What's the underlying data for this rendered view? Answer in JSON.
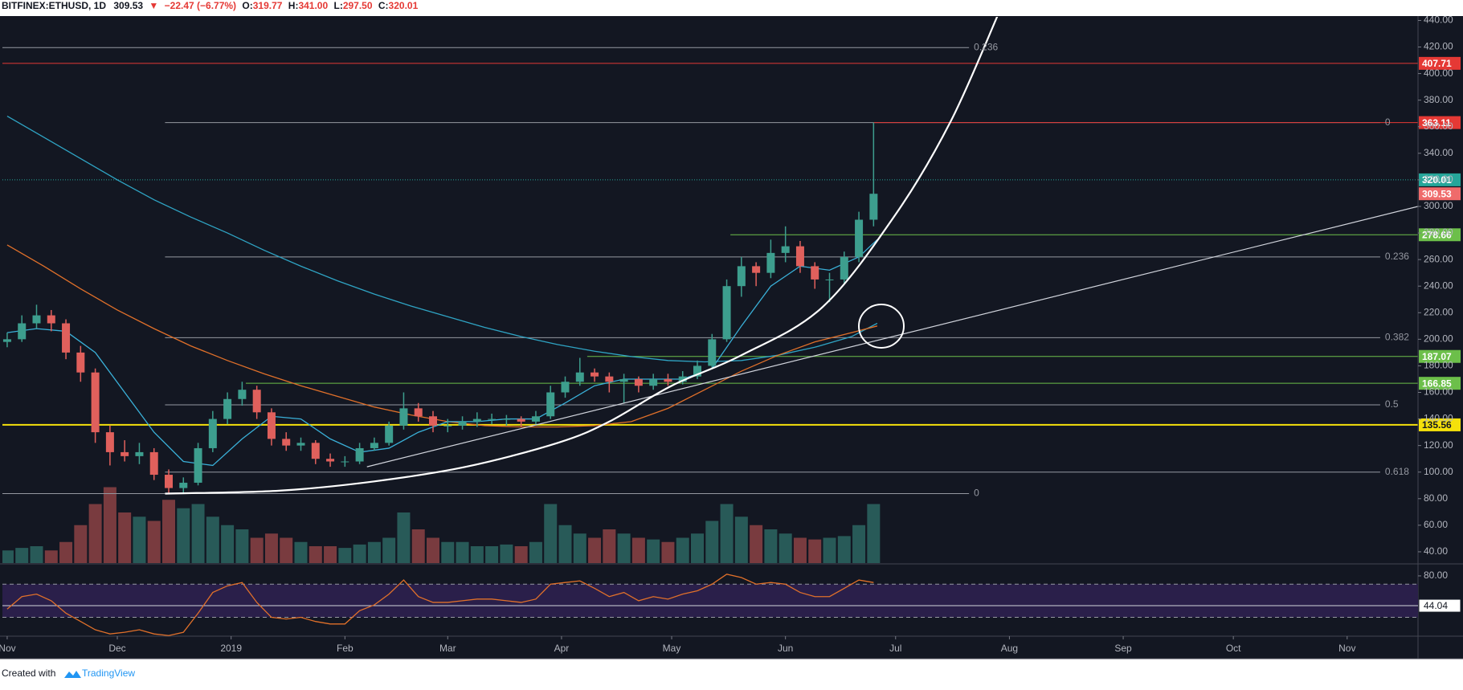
{
  "header": {
    "symbol": "BITFINEX:ETHUSD, 1D",
    "last": "309.53",
    "arrow": "▼",
    "change": "−22.47 (−6.77%)",
    "ohlc": [
      {
        "label": "O:",
        "value": "319.77"
      },
      {
        "label": "H:",
        "value": "341.00"
      },
      {
        "label": "L:",
        "value": "297.50"
      },
      {
        "label": "C:",
        "value": "320.01"
      }
    ]
  },
  "footer": {
    "created": "Created with",
    "brand": "TradingView"
  },
  "chart_data": {
    "type": "candlestick",
    "up_color": "#3d9e8e",
    "down_color": "#e0605c",
    "xlim": [
      -1.3,
      384.3
    ],
    "xticks": [
      {
        "value": 0,
        "label": "Nov"
      },
      {
        "value": 30,
        "label": "Dec"
      },
      {
        "value": 61,
        "label": "2019"
      },
      {
        "value": 92,
        "label": "Feb"
      },
      {
        "value": 120,
        "label": "Mar"
      },
      {
        "value": 151,
        "label": "Apr"
      },
      {
        "value": 181,
        "label": "May"
      },
      {
        "value": 212,
        "label": "Jun"
      },
      {
        "value": 242,
        "label": "Jul"
      },
      {
        "value": 273,
        "label": "Aug"
      },
      {
        "value": 304,
        "label": "Sep"
      },
      {
        "value": 334,
        "label": "Oct"
      },
      {
        "value": 365,
        "label": "Nov"
      }
    ],
    "ylim": [
      31.5,
      442.7
    ],
    "yticks": [
      {
        "value": 40,
        "label": "40.00"
      },
      {
        "value": 60,
        "label": "60.00"
      },
      {
        "value": 80,
        "label": "80.00"
      },
      {
        "value": 100,
        "label": "100.00"
      },
      {
        "value": 120,
        "label": "120.00"
      },
      {
        "value": 140,
        "label": "140.00"
      },
      {
        "value": 160,
        "label": "160.00"
      },
      {
        "value": 180,
        "label": "180.00"
      },
      {
        "value": 200,
        "label": "200.00"
      },
      {
        "value": 220,
        "label": "220.00"
      },
      {
        "value": 240,
        "label": "240.00"
      },
      {
        "value": 260,
        "label": "260.00"
      },
      {
        "value": 280,
        "label": "280.00"
      },
      {
        "value": 300,
        "label": "300.00"
      },
      {
        "value": 320,
        "label": "320.00"
      },
      {
        "value": 340,
        "label": "340.00"
      },
      {
        "value": 360,
        "label": "360.00"
      },
      {
        "value": 380,
        "label": "380.00"
      },
      {
        "value": 400,
        "label": "400.00"
      },
      {
        "value": 420,
        "label": "420.00"
      },
      {
        "value": 440,
        "label": "440.00"
      }
    ],
    "x": [
      0,
      4,
      8,
      12,
      16,
      20,
      24,
      28,
      32,
      36,
      40,
      44,
      48,
      52,
      56,
      60,
      64,
      68,
      72,
      76,
      80,
      84,
      88,
      92,
      96,
      100,
      104,
      108,
      112,
      116,
      120,
      124,
      128,
      132,
      136,
      140,
      144,
      148,
      152,
      156,
      160,
      164,
      168,
      172,
      176,
      180,
      184,
      188,
      192,
      196,
      200,
      204,
      208,
      212,
      216,
      220,
      224,
      228,
      232,
      236
    ],
    "open": [
      198,
      200,
      212,
      218,
      212,
      190,
      175,
      130,
      115,
      112,
      115,
      98,
      88,
      92,
      118,
      140,
      155,
      162,
      145,
      125,
      120,
      122,
      110,
      108,
      108,
      118,
      122,
      135,
      148,
      142,
      135,
      135,
      138,
      140,
      140,
      140,
      138,
      142,
      160,
      168,
      175,
      172,
      168,
      170,
      165,
      170,
      168,
      172,
      180,
      200,
      240,
      255,
      250,
      265,
      270,
      255,
      245,
      245,
      262,
      290
    ],
    "high": [
      205,
      218,
      226,
      222,
      215,
      195,
      178,
      135,
      124,
      122,
      118,
      102,
      96,
      122,
      146,
      160,
      168,
      165,
      148,
      130,
      126,
      124,
      114,
      112,
      122,
      126,
      138,
      160,
      152,
      146,
      140,
      142,
      145,
      144,
      143,
      142,
      146,
      165,
      172,
      186,
      178,
      175,
      174,
      172,
      174,
      174,
      176,
      184,
      204,
      245,
      262,
      258,
      275,
      285,
      274,
      258,
      250,
      266,
      296,
      363.11
    ],
    "low": [
      194,
      198,
      208,
      206,
      185,
      168,
      122,
      105,
      108,
      106,
      94,
      84,
      84,
      90,
      115,
      136,
      150,
      140,
      120,
      116,
      116,
      106,
      104,
      104,
      106,
      116,
      120,
      132,
      138,
      130,
      130,
      132,
      134,
      136,
      135,
      134,
      136,
      140,
      156,
      165,
      168,
      160,
      152,
      160,
      162,
      165,
      166,
      170,
      178,
      198,
      232,
      240,
      246,
      258,
      250,
      238,
      228,
      242,
      258,
      285
    ],
    "close": [
      200,
      212,
      218,
      212,
      190,
      175,
      130,
      115,
      112,
      115,
      98,
      88,
      92,
      118,
      140,
      155,
      162,
      145,
      125,
      120,
      122,
      110,
      108,
      108,
      118,
      122,
      135,
      148,
      142,
      135,
      135,
      138,
      140,
      140,
      140,
      138,
      142,
      160,
      168,
      175,
      172,
      168,
      170,
      165,
      170,
      168,
      172,
      180,
      200,
      240,
      255,
      250,
      265,
      270,
      255,
      245,
      245,
      262,
      290,
      309.53
    ],
    "volume_ylim": [
      0,
      100
    ],
    "volume": [
      15,
      18,
      20,
      15,
      25,
      45,
      70,
      90,
      60,
      55,
      50,
      75,
      65,
      70,
      55,
      45,
      40,
      30,
      35,
      30,
      25,
      20,
      20,
      18,
      22,
      25,
      30,
      60,
      40,
      30,
      25,
      25,
      20,
      20,
      22,
      20,
      25,
      70,
      45,
      35,
      30,
      40,
      35,
      30,
      28,
      25,
      30,
      35,
      50,
      70,
      55,
      45,
      40,
      35,
      30,
      28,
      30,
      32,
      45,
      70
    ],
    "ma_lines": [
      {
        "color": "#2fa4c4",
        "x": [
          0,
          10,
          20,
          30,
          40,
          50,
          60,
          70,
          80,
          90,
          100,
          110,
          120,
          130,
          140,
          150,
          160,
          170,
          180,
          190,
          200,
          210,
          220,
          230,
          237
        ],
        "values": [
          368,
          352,
          336,
          320,
          305,
          292,
          280,
          267,
          255,
          244,
          234,
          225,
          217,
          209,
          202,
          196,
          191,
          187,
          184,
          183,
          184,
          188,
          194,
          202,
          212
        ]
      },
      {
        "color": "#e0702a",
        "x": [
          0,
          10,
          20,
          30,
          40,
          50,
          60,
          70,
          80,
          90,
          100,
          110,
          120,
          130,
          140,
          150,
          160,
          170,
          180,
          190,
          200,
          210,
          220,
          230,
          237
        ],
        "values": [
          271,
          255,
          238,
          222,
          208,
          195,
          184,
          174,
          165,
          157,
          149,
          143,
          138,
          135,
          134,
          134,
          135,
          138,
          148,
          162,
          176,
          188,
          198,
          205,
          210
        ]
      },
      {
        "color": "#3ab0d8",
        "x": [
          0,
          8,
          16,
          24,
          32,
          40,
          48,
          56,
          64,
          72,
          80,
          88,
          96,
          104,
          112,
          120,
          128,
          136,
          144,
          152,
          160,
          168,
          176,
          184,
          192,
          200,
          208,
          216,
          224,
          232,
          237
        ],
        "values": [
          205,
          208,
          206,
          190,
          160,
          130,
          108,
          105,
          125,
          142,
          140,
          125,
          115,
          118,
          130,
          138,
          138,
          140,
          140,
          152,
          165,
          170,
          170,
          170,
          178,
          210,
          240,
          255,
          252,
          262,
          275
        ]
      }
    ],
    "hlines": [
      {
        "price": 407.71,
        "color": "#e53935",
        "from": -1.3,
        "line": true
      },
      {
        "price": 363.11,
        "color": "#e53935",
        "from": 236,
        "line": true
      },
      {
        "price": 320.01,
        "color": "#26a69a",
        "from": -1.3,
        "line": true,
        "dotted": true
      },
      {
        "price": 309.53,
        "color": "#ef6b6b",
        "from": 236,
        "line": false
      },
      {
        "price": 278.66,
        "color": "#6cbf4a",
        "from": 197,
        "line": true
      },
      {
        "price": 187.07,
        "color": "#6cbf4a",
        "from": 158,
        "line": true
      },
      {
        "price": 166.85,
        "color": "#6cbf4a",
        "from": 65,
        "line": true
      },
      {
        "price": 135.56,
        "color": "#f5e10b",
        "from": -1.3,
        "line": true,
        "thick": true
      }
    ],
    "fib_sets": [
      {
        "from": 43,
        "to": 374,
        "levels": [
          {
            "level": 0,
            "price": 363.11
          },
          {
            "level": 0.236,
            "price": 262
          },
          {
            "level": 0.382,
            "price": 201.2
          },
          {
            "level": 0.5,
            "price": 150.6
          },
          {
            "level": 0.618,
            "price": 100
          }
        ]
      },
      {
        "from": -1.3,
        "to": 262,
        "levels": [
          {
            "level": 0.236,
            "price": 419.6
          },
          {
            "level": 0,
            "price": 83.8
          }
        ]
      }
    ],
    "parabola": {
      "x": [
        43,
        74,
        100,
        125,
        150,
        164,
        181,
        200,
        222,
        242,
        257,
        270
      ],
      "values": [
        83.8,
        86,
        93,
        104,
        122,
        138,
        165,
        188,
        224,
        294,
        364,
        445
      ]
    },
    "trendline": {
      "x": [
        98,
        384.3
      ],
      "values": [
        104,
        300
      ]
    },
    "rsi_ylim": [
      9.2,
      93.5
    ],
    "rsi_yticks": [
      {
        "value": 80,
        "label": "80.00"
      }
    ],
    "rsi_bands": [
      70,
      30
    ],
    "rsi_level": {
      "value": 44.04,
      "label": "44.04"
    },
    "rsi_color": "#e0702a",
    "rsi": [
      40,
      55,
      58,
      50,
      35,
      25,
      15,
      10,
      12,
      15,
      10,
      8,
      12,
      35,
      60,
      68,
      72,
      48,
      30,
      28,
      30,
      25,
      22,
      22,
      38,
      45,
      58,
      75,
      55,
      48,
      48,
      50,
      52,
      52,
      50,
      48,
      52,
      70,
      72,
      74,
      65,
      55,
      60,
      50,
      55,
      52,
      58,
      62,
      70,
      82,
      78,
      70,
      72,
      70,
      60,
      55,
      55,
      65,
      75,
      72
    ]
  }
}
